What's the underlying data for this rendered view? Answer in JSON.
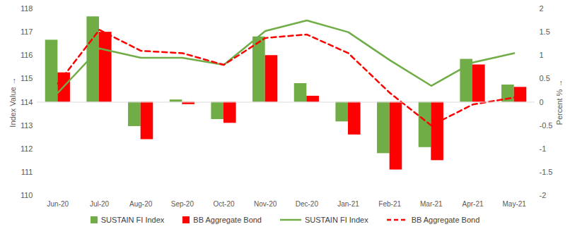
{
  "chart_data": {
    "type": "combo",
    "categories": [
      "Jun-20",
      "Jul-20",
      "Aug-20",
      "Sep-20",
      "Oct-20",
      "Nov-20",
      "Dec-20",
      "Jan-21",
      "Feb-21",
      "Mar-21",
      "Apr-21",
      "May-21"
    ],
    "ylabel": "Index Value",
    "y2label": "Percent %",
    "ylim": [
      110,
      118
    ],
    "yticks": [
      110,
      111,
      112,
      113,
      114,
      115,
      116,
      117,
      118
    ],
    "y2lim": [
      -2,
      2
    ],
    "y2ticks": [
      -2,
      -1.5,
      -1,
      -0.5,
      0,
      0.5,
      1,
      1.5,
      2
    ],
    "grid": false,
    "legend": "bottom",
    "series": [
      {
        "name": "SUSTAIN FI Index",
        "type": "bar",
        "axis": "y2",
        "color": "#70ad47",
        "values": [
          1.33,
          1.83,
          -0.52,
          0.05,
          -0.37,
          1.4,
          0.4,
          -0.42,
          -1.1,
          -0.97,
          0.92,
          0.37
        ]
      },
      {
        "name": "BB Aggregate Bond",
        "type": "bar",
        "axis": "y2",
        "color": "#ff0000",
        "values": [
          0.63,
          1.5,
          -0.8,
          -0.05,
          -0.45,
          1.0,
          0.13,
          -0.7,
          -1.45,
          -1.25,
          0.8,
          0.32
        ]
      },
      {
        "name": "SUSTAIN FI Index",
        "type": "line",
        "color": "#70ad47",
        "line_style": "solid",
        "values": [
          114.4,
          116.3,
          115.9,
          115.9,
          115.6,
          117.05,
          117.5,
          117.0,
          115.8,
          114.7,
          115.7,
          116.1
        ]
      },
      {
        "name": "BB Aggregate Bond",
        "type": "line",
        "color": "#ff0000",
        "line_style": "dashed",
        "values": [
          114.8,
          117.1,
          116.2,
          116.1,
          115.6,
          116.75,
          116.9,
          116.1,
          114.4,
          113.0,
          113.9,
          114.2
        ]
      }
    ]
  }
}
